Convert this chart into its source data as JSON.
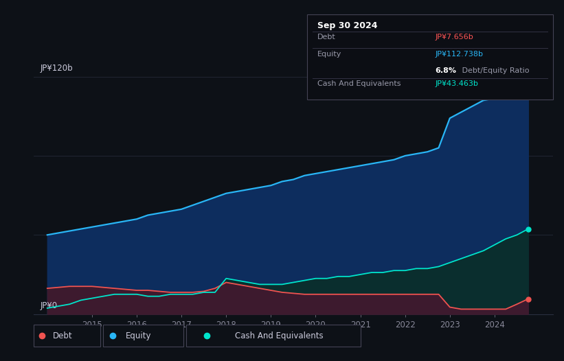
{
  "background_color": "#0d1117",
  "title_date": "Sep 30 2024",
  "tooltip": {
    "debt_label": "Debt",
    "debt_value": "JP¥7.656b",
    "debt_color": "#ff5555",
    "equity_label": "Equity",
    "equity_value": "JP¥112.738b",
    "equity_color": "#29b6f6",
    "ratio_text": "6.8%",
    "ratio_suffix": " Debt/Equity Ratio",
    "cash_label": "Cash And Equivalents",
    "cash_value": "JP¥43.463b",
    "cash_color": "#00e5cc"
  },
  "ylim": [
    0,
    135
  ],
  "xlim": [
    2013.7,
    2025.3
  ],
  "ylabel_top": "JP¥120b",
  "ylabel_bottom": "JP¥0",
  "equity_color": "#29b6f6",
  "equity_fill": "#0d2d5e",
  "debt_color": "#ef5350",
  "debt_fill": "#3d1a2e",
  "cash_color": "#00e5cc",
  "cash_fill": "#0a2e2e",
  "grid_color": "#2a3040",
  "tick_color": "#888899",
  "label_color": "#ccccdd",
  "x_tick_labels": [
    "2015",
    "2016",
    "2017",
    "2018",
    "2019",
    "2020",
    "2021",
    "2022",
    "2023",
    "2024"
  ],
  "x_tick_positions": [
    2015,
    2016,
    2017,
    2018,
    2019,
    2020,
    2021,
    2022,
    2023,
    2024
  ],
  "years": [
    2014.0,
    2014.25,
    2014.5,
    2014.75,
    2015.0,
    2015.25,
    2015.5,
    2015.75,
    2016.0,
    2016.25,
    2016.5,
    2016.75,
    2017.0,
    2017.25,
    2017.5,
    2017.75,
    2018.0,
    2018.25,
    2018.5,
    2018.75,
    2019.0,
    2019.25,
    2019.5,
    2019.75,
    2020.0,
    2020.25,
    2020.5,
    2020.75,
    2021.0,
    2021.25,
    2021.5,
    2021.75,
    2022.0,
    2022.25,
    2022.5,
    2022.75,
    2023.0,
    2023.25,
    2023.5,
    2023.75,
    2024.0,
    2024.25,
    2024.5,
    2024.75
  ],
  "equity_values": [
    40,
    41,
    42,
    43,
    44,
    45,
    46,
    47,
    48,
    50,
    51,
    52,
    53,
    55,
    57,
    59,
    61,
    62,
    63,
    64,
    65,
    67,
    68,
    70,
    71,
    72,
    73,
    74,
    75,
    76,
    77,
    78,
    80,
    81,
    82,
    84,
    99,
    102,
    105,
    108,
    109,
    110,
    111,
    113
  ],
  "debt_values": [
    13,
    13.5,
    14,
    14,
    14,
    13.5,
    13,
    12.5,
    12,
    12,
    11.5,
    11,
    11,
    11,
    11.5,
    13,
    16,
    15,
    14,
    13,
    12,
    11,
    10.5,
    10,
    10,
    10,
    10,
    10,
    10,
    10,
    10,
    10,
    10,
    10,
    10,
    10,
    3.5,
    2.5,
    2.5,
    2.5,
    2.5,
    2.5,
    5,
    7.656
  ],
  "cash_values": [
    3,
    4,
    5,
    7,
    8,
    9,
    10,
    10,
    10,
    9,
    9,
    10,
    10,
    10,
    11,
    11,
    18,
    17,
    16,
    15,
    15,
    15,
    16,
    17,
    18,
    18,
    19,
    19,
    20,
    21,
    21,
    22,
    22,
    23,
    23,
    24,
    26,
    28,
    30,
    32,
    35,
    38,
    40,
    43
  ]
}
